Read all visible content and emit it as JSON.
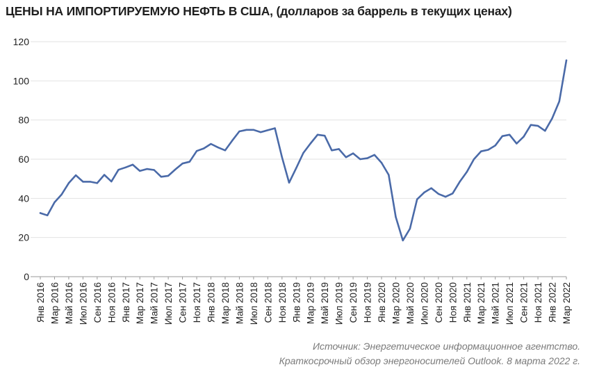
{
  "header": {
    "title": "ЦЕНЫ НА ИМПОРТИРУЕМУЮ НЕФТЬ В США,",
    "subtitle": "(долларов за баррель в текущих ценах)"
  },
  "source": {
    "line1": "Источник: Энергетическое информационное агентство.",
    "line2": "Краткосрочный обзор энергоносителей Outlook. 8 марта 2022 г."
  },
  "colors": {
    "line": "#4a6aa8",
    "grid": "#e2e2e2",
    "axis": "#9a9a9a"
  },
  "chart_data": {
    "type": "line",
    "title": "ЦЕНЫ НА ИМПОРТИРУЕМУЮ НЕФТЬ В США, (долларов за баррель в текущих ценах)",
    "xlabel": "",
    "ylabel": "",
    "ylim": [
      0,
      120
    ],
    "yticks": [
      0,
      20,
      40,
      60,
      80,
      100,
      120
    ],
    "grid": true,
    "legend": "none",
    "x": [
      "Янв 2016",
      "Фев 2016",
      "Мар 2016",
      "Апр 2016",
      "Май 2016",
      "Июн 2016",
      "Июл 2016",
      "Авг 2016",
      "Сен 2016",
      "Окт 2016",
      "Ноя 2016",
      "Дек 2016",
      "Янв 2017",
      "Фев 2017",
      "Мар 2017",
      "Апр 2017",
      "Май 2017",
      "Июн 2017",
      "Июл 2017",
      "Авг 2017",
      "Сен 2017",
      "Окт 2017",
      "Ноя 2017",
      "Дек 2017",
      "Янв 2018",
      "Фев 2018",
      "Мар 2018",
      "Апр 2018",
      "Май 2018",
      "Июн 2018",
      "Июл 2018",
      "Авг 2018",
      "Сен 2018",
      "Окт 2018",
      "Ноя 2018",
      "Дек 2018",
      "Янв 2019",
      "Фев 2019",
      "Мар 2019",
      "Апр 2019",
      "Май 2019",
      "Июн 2019",
      "Июл 2019",
      "Авг 2019",
      "Сен 2019",
      "Окт 2019",
      "Ноя 2019",
      "Дек 2019",
      "Янв 2020",
      "Фев 2020",
      "Мар 2020",
      "Апр 2020",
      "Май 2020",
      "Июн 2020",
      "Июл 2020",
      "Авг 2020",
      "Сен 2020",
      "Окт 2020",
      "Ноя 2020",
      "Дек 2020",
      "Янв 2021",
      "Фев 2021",
      "Мар 2021",
      "Апр 2021",
      "Май 2021",
      "Июн 2021",
      "Июл 2021",
      "Авг 2021",
      "Сен 2021",
      "Окт 2021",
      "Ноя 2021",
      "Дек 2021",
      "Янв 2022",
      "Фев 2022",
      "Мар 2022"
    ],
    "xtick_labels": [
      "Янв 2016",
      "Мар 2016",
      "Май 2016",
      "Июл 2016",
      "Сен 2016",
      "Ноя 2016",
      "Янв 2017",
      "Мар 2017",
      "Май 2017",
      "Июл 2017",
      "Сен 2017",
      "Ноя 2017",
      "Янв 2018",
      "Мар 2018",
      "Май 2018",
      "Июл 2018",
      "Сен 2018",
      "Ноя 2018",
      "Янв 2019",
      "Мар 2019",
      "Май 2019",
      "Июл 2019",
      "Сен 2019",
      "Ноя 2019",
      "Янв 2020",
      "Мар 2020",
      "Май 2020",
      "Июл 2020",
      "Сен 2020",
      "Ноя 2020",
      "Янв 2021",
      "Мар 2021",
      "Май 2021",
      "Июл 2021",
      "Сен 2021",
      "Ноя 2021",
      "Янв 2022",
      "Мар 2022"
    ],
    "series": [
      {
        "values": [
          32.5,
          31.3,
          38.0,
          42.0,
          47.8,
          51.8,
          48.5,
          48.5,
          47.8,
          52.0,
          48.6,
          54.6,
          55.8,
          57.2,
          54.0,
          55.0,
          54.5,
          51.0,
          51.5,
          54.8,
          57.8,
          58.7,
          64.2,
          65.5,
          67.8,
          66.0,
          64.5,
          69.5,
          74.2,
          75.0,
          75.0,
          73.8,
          74.8,
          75.8,
          61.0,
          48.0,
          55.5,
          63.2,
          68.0,
          72.5,
          72.0,
          64.5,
          65.2,
          61.0,
          63.0,
          60.0,
          60.5,
          62.2,
          58.2,
          52.0,
          30.5,
          18.5,
          24.5,
          39.5,
          43.0,
          45.2,
          42.3,
          40.8,
          42.5,
          48.5,
          53.5,
          60.0,
          64.0,
          64.8,
          67.0,
          71.8,
          72.5,
          68.0,
          71.5,
          77.5,
          77.0,
          74.5,
          80.8,
          89.5,
          110.5
        ]
      }
    ]
  }
}
